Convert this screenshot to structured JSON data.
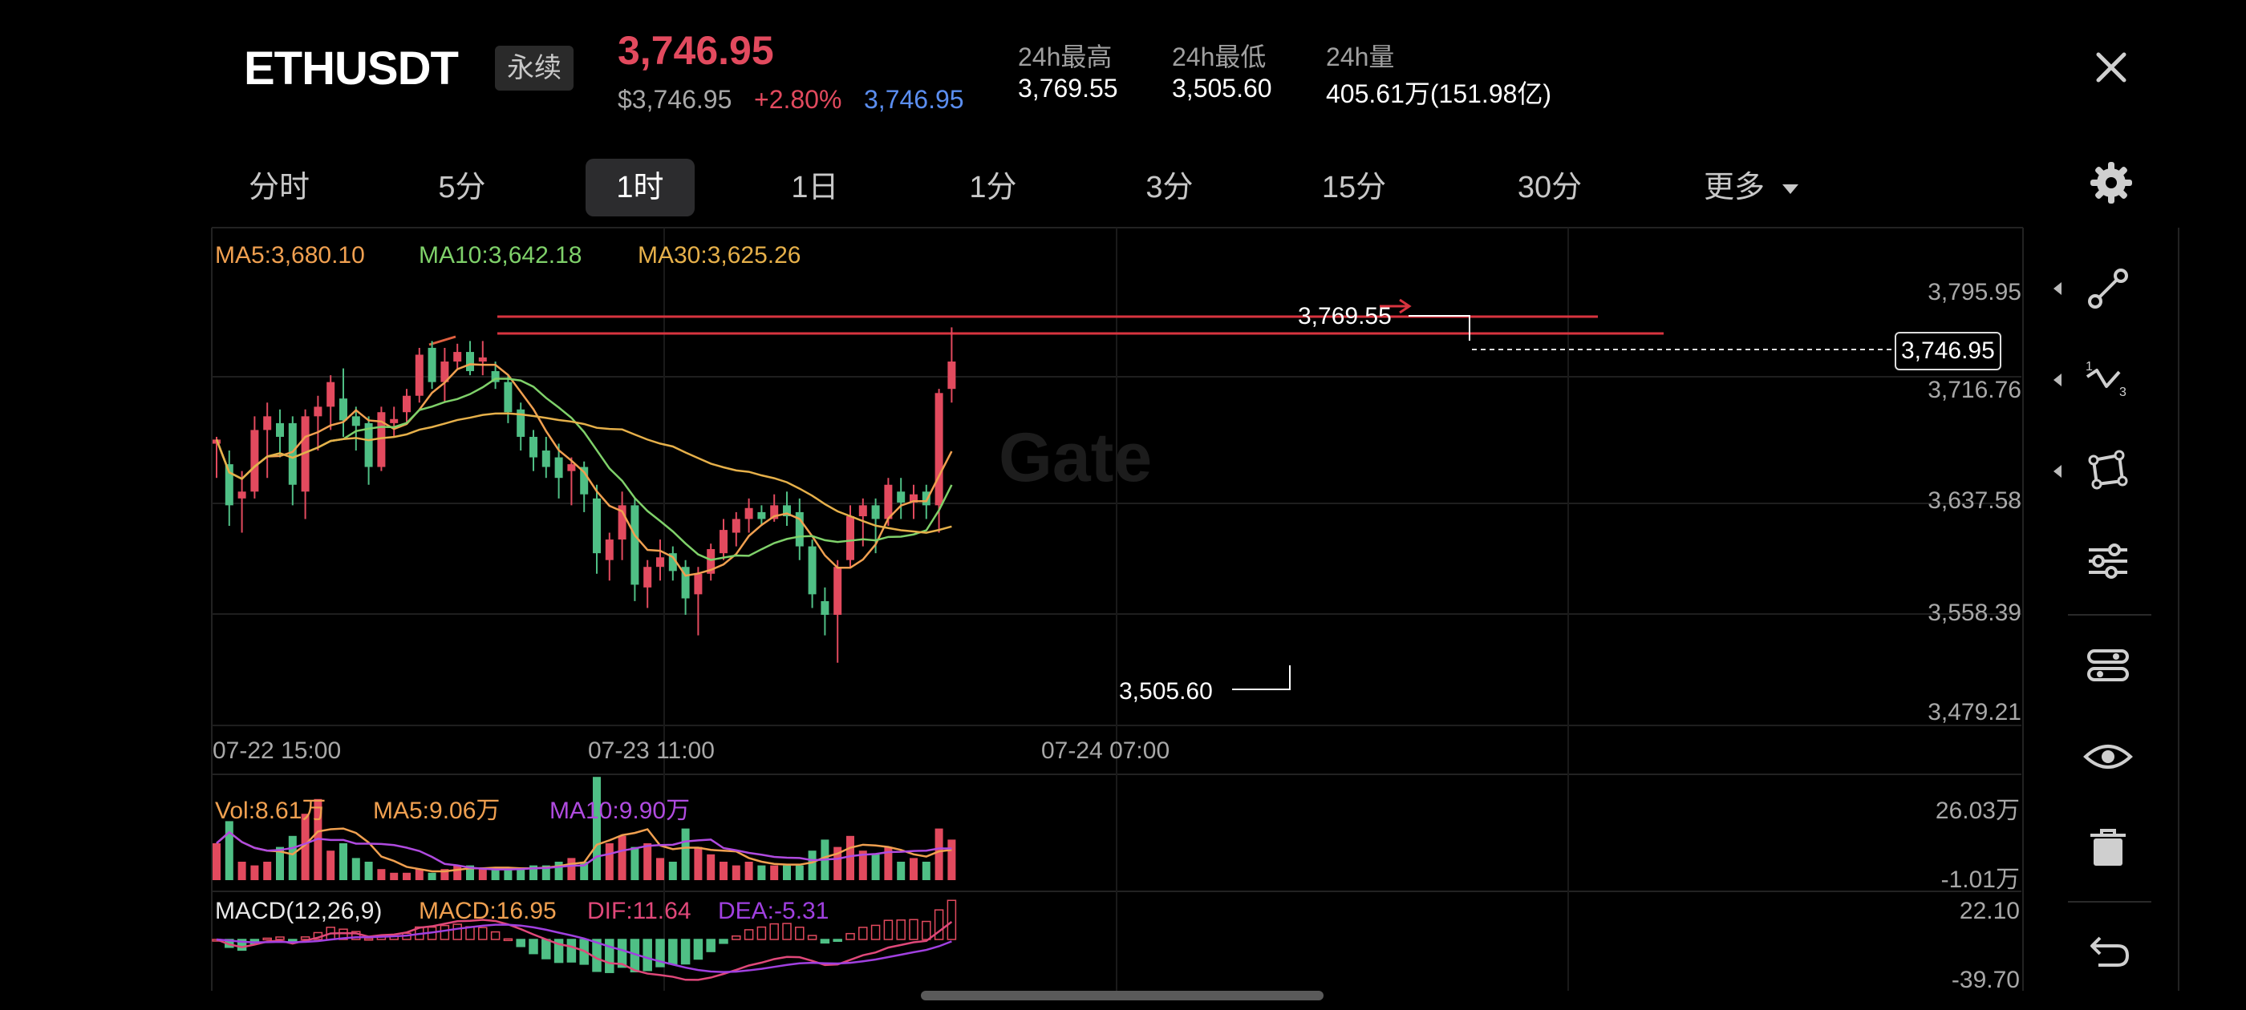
{
  "header": {
    "symbol": "ETHUSDT",
    "contract_type": "永续",
    "last_price": "3,746.95",
    "usd_price": "$3,746.95",
    "change_pct": "+2.80%",
    "mark_price": "3,746.95",
    "stats": [
      {
        "label": "24h最高",
        "value": "3,769.55"
      },
      {
        "label": "24h最低",
        "value": "3,505.60"
      },
      {
        "label": "24h量",
        "value": "405.61万(151.98亿)"
      }
    ]
  },
  "timeframes": {
    "items": [
      "分时",
      "5分",
      "1时",
      "1日",
      "1分",
      "3分",
      "15分",
      "30分",
      "更多"
    ],
    "active": "1时"
  },
  "ma_legend": {
    "ma5": "MA5:3,680.10",
    "ma10": "MA10:3,642.18",
    "ma30": "MA30:3,625.26"
  },
  "price_axis": [
    "3,795.95",
    "3,716.76",
    "3,637.58",
    "3,558.39",
    "3,479.21"
  ],
  "current_price_tag": "3,746.95",
  "high_marker": "3,769.55",
  "low_marker": "3,505.60",
  "time_axis": [
    "07-22 15:00",
    "07-23 11:00",
    "07-24 07:00"
  ],
  "volume": {
    "vol": "Vol:8.61万",
    "ma5": "MA5:9.06万",
    "ma10": "MA10:9.90万",
    "axis_top": "26.03万",
    "axis_bottom": "-1.01万"
  },
  "macd": {
    "params": "MACD(12,26,9)",
    "macd": "MACD:16.95",
    "dif": "DIF:11.64",
    "dea": "DEA:-5.31",
    "axis_top": "22.10",
    "axis_bottom": "-39.70"
  },
  "colors": {
    "up": "#e24a5e",
    "down": "#4fbf85",
    "ma5": "#f0a050",
    "ma10": "#7fd16a",
    "ma30": "#e6b04a",
    "vol_ma10": "#b04be0",
    "macd_dif": "#e0487a",
    "macd_dea": "#a040e0",
    "mark_blue": "#5b8ef0"
  },
  "toolbar_icons": [
    "trendline-icon",
    "fib-icon",
    "shape-icon",
    "indicator-settings-icon",
    "layers-icon",
    "visibility-icon",
    "delete-icon",
    "undo-icon"
  ]
}
